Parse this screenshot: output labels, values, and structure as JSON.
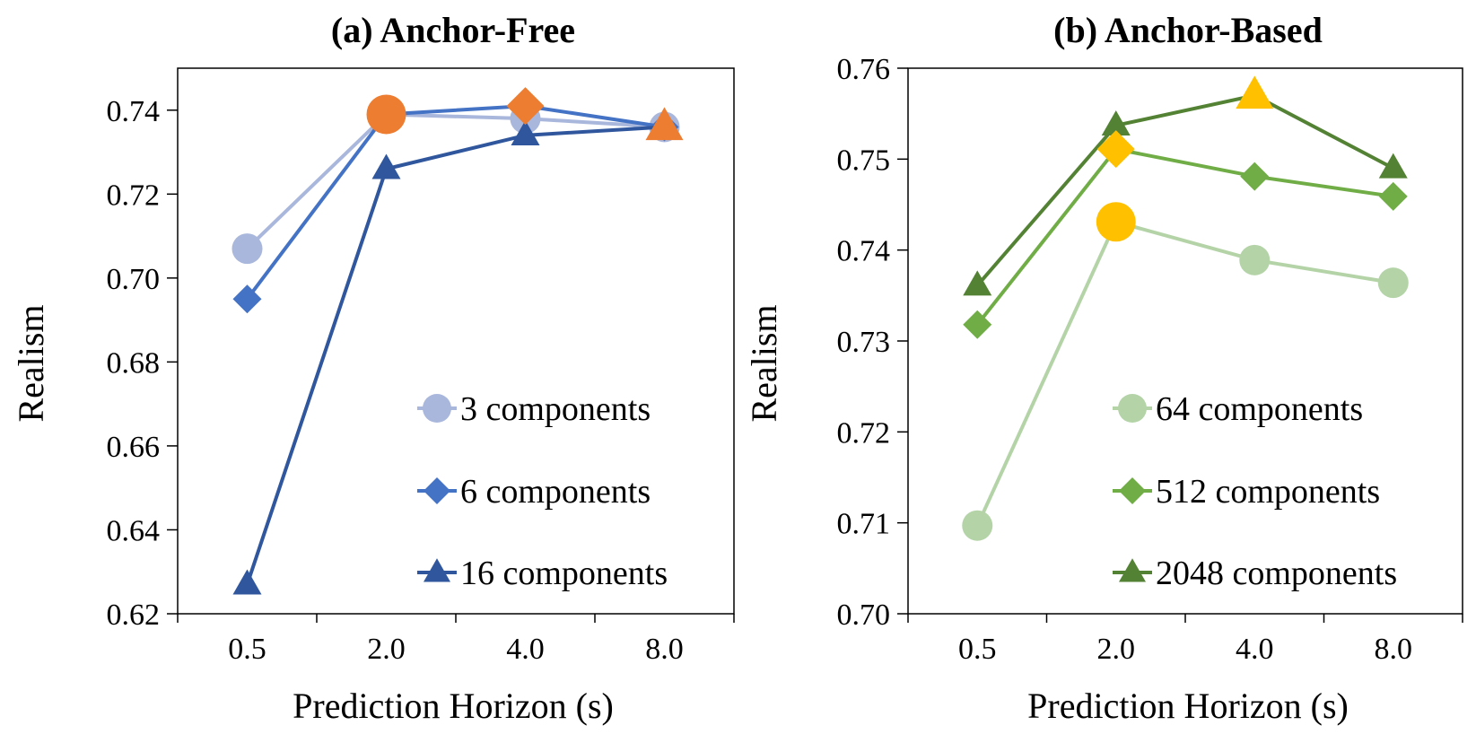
{
  "chart_data": [
    {
      "type": "line",
      "title": "(a) Anchor-Free",
      "xlabel": "Prediction Horizon (s)",
      "ylabel": "Realism",
      "categories": [
        "0.5",
        "2.0",
        "4.0",
        "8.0"
      ],
      "ylim": [
        0.62,
        0.75
      ],
      "yticks": [
        "0.62",
        "0.64",
        "0.66",
        "0.68",
        "0.70",
        "0.72",
        "0.74"
      ],
      "ytick_values": [
        0.62,
        0.64,
        0.66,
        0.68,
        0.7,
        0.72,
        0.74
      ],
      "legend_position": "bottom-right",
      "series": [
        {
          "name": "3 components",
          "values": [
            0.707,
            0.739,
            0.738,
            0.736
          ],
          "color": "#A9B7DC",
          "marker": "circle",
          "best_index": 1
        },
        {
          "name": "6 components",
          "values": [
            0.695,
            0.739,
            0.741,
            0.736
          ],
          "color": "#4472C4",
          "marker": "diamond",
          "best_index": 2
        },
        {
          "name": "16 components",
          "values": [
            0.627,
            0.726,
            0.734,
            0.736
          ],
          "color": "#30579D",
          "marker": "triangle",
          "best_index": 3
        }
      ],
      "highlight_color": "#ED7D31"
    },
    {
      "type": "line",
      "title": "(b) Anchor-Based",
      "xlabel": "Prediction Horizon (s)",
      "ylabel": "Realism",
      "categories": [
        "0.5",
        "2.0",
        "4.0",
        "8.0"
      ],
      "ylim": [
        0.7,
        0.76
      ],
      "yticks": [
        "0.70",
        "0.71",
        "0.72",
        "0.73",
        "0.74",
        "0.75",
        "0.76"
      ],
      "ytick_values": [
        0.7,
        0.71,
        0.72,
        0.73,
        0.74,
        0.75,
        0.76
      ],
      "legend_position": "bottom-right",
      "series": [
        {
          "name": "64 components",
          "values": [
            0.7097,
            0.7431,
            0.7389,
            0.7364
          ],
          "color": "#B4D4A8",
          "marker": "circle",
          "best_index": 1
        },
        {
          "name": "512 components",
          "values": [
            0.7318,
            0.7511,
            0.7481,
            0.7459
          ],
          "color": "#70AD47",
          "marker": "diamond",
          "best_index": 1
        },
        {
          "name": "2048 components",
          "values": [
            0.7361,
            0.7537,
            0.757,
            0.749
          ],
          "color": "#548235",
          "marker": "triangle",
          "best_index": 2
        }
      ],
      "highlight_color": "#FFC000"
    }
  ]
}
